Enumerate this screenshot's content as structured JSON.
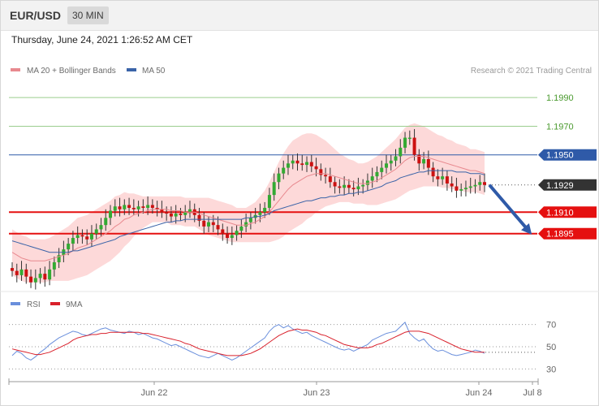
{
  "header": {
    "symbol": "EUR/USD",
    "period": "30 MIN"
  },
  "datetime": "Thursday, June 24, 2021 1:26:52 AM CET",
  "copyright": "Research © 2021 Trading Central",
  "legend": {
    "ma20": "MA 20 + Bollinger Bands",
    "ma50": "MA 50",
    "rsi": "RSI",
    "rsi_ma": "9MA"
  },
  "colors": {
    "candle_up": "#33aa33",
    "candle_down": "#cc1111",
    "bollinger_fill": "#fdd9d9",
    "ma20": "#e8898f",
    "ma50": "#3a63a8",
    "support": "#e51010",
    "pivot": "#2f5aa8",
    "resistance": "#9acd8e",
    "rsi": "#6a8fdc",
    "rsi_ma": "#d9202b",
    "arrow": "#2f5aa8"
  },
  "chart_data": [
    {
      "type": "candlestick",
      "title": "EUR/USD",
      "ylim": [
        1.1858,
        1.2002
      ],
      "price_levels": [
        {
          "label": "1.1990",
          "value": 1.199,
          "kind": "resistance"
        },
        {
          "label": "1.1970",
          "value": 1.197,
          "kind": "resistance"
        },
        {
          "label": "1.1950",
          "value": 1.195,
          "kind": "pivot"
        },
        {
          "label": "1.1929",
          "value": 1.1929,
          "kind": "last"
        },
        {
          "label": "1.1910",
          "value": 1.191,
          "kind": "support"
        },
        {
          "label": "1.1895",
          "value": 1.1895,
          "kind": "support"
        }
      ],
      "closes": [
        1.1869,
        1.1866,
        1.187,
        1.1865,
        1.1861,
        1.1864,
        1.1867,
        1.1863,
        1.187,
        1.1875,
        1.188,
        1.1884,
        1.1888,
        1.1892,
        1.1894,
        1.1893,
        1.1891,
        1.1895,
        1.1898,
        1.1901,
        1.1906,
        1.1911,
        1.1914,
        1.1912,
        1.1915,
        1.1913,
        1.1912,
        1.1914,
        1.1913,
        1.1915,
        1.1913,
        1.1912,
        1.191,
        1.1909,
        1.1907,
        1.1909,
        1.1908,
        1.191,
        1.1912,
        1.1908,
        1.1904,
        1.19,
        1.1903,
        1.1901,
        1.1898,
        1.1895,
        1.1892,
        1.1894,
        1.1897,
        1.19,
        1.1903,
        1.1906,
        1.1908,
        1.191,
        1.1913,
        1.1922,
        1.1931,
        1.1937,
        1.1941,
        1.1944,
        1.1946,
        1.1944,
        1.1943,
        1.1945,
        1.1942,
        1.194,
        1.1936,
        1.1935,
        1.1931,
        1.1928,
        1.1927,
        1.1929,
        1.1927,
        1.1926,
        1.1928,
        1.1929,
        1.1932,
        1.1935,
        1.1938,
        1.1941,
        1.1944,
        1.1946,
        1.1949,
        1.1955,
        1.1962,
        1.1962,
        1.195,
        1.1944,
        1.1947,
        1.1941,
        1.1935,
        1.1933,
        1.1935,
        1.193,
        1.1928,
        1.1925,
        1.1926,
        1.1927,
        1.1928,
        1.1929,
        1.1931,
        1.1929
      ],
      "ma20": [
        1.1882,
        1.188,
        1.1878,
        1.1877,
        1.1876,
        1.1876,
        1.1876,
        1.1876,
        1.1877,
        1.1878,
        1.1879,
        1.188,
        1.1881,
        1.1883,
        1.1885,
        1.1886,
        1.1887,
        1.1889,
        1.1891,
        1.1893,
        1.1895,
        1.1897,
        1.19,
        1.1902,
        1.1905,
        1.1906,
        1.1908,
        1.1909,
        1.191,
        1.1911,
        1.1912,
        1.1912,
        1.1912,
        1.1912,
        1.1911,
        1.1911,
        1.1911,
        1.191,
        1.191,
        1.191,
        1.1909,
        1.1908,
        1.1907,
        1.1906,
        1.1905,
        1.1904,
        1.1903,
        1.1902,
        1.1901,
        1.1901,
        1.1901,
        1.1902,
        1.1903,
        1.1905,
        1.1907,
        1.191,
        1.1914,
        1.1918,
        1.1922,
        1.1926,
        1.1929,
        1.1931,
        1.1933,
        1.1935,
        1.1936,
        1.1937,
        1.1937,
        1.1937,
        1.1936,
        1.1935,
        1.1934,
        1.1933,
        1.1932,
        1.1931,
        1.193,
        1.193,
        1.193,
        1.1931,
        1.1932,
        1.1934,
        1.1936,
        1.1938,
        1.194,
        1.1943,
        1.1946,
        1.1948,
        1.1949,
        1.1949,
        1.1949,
        1.1948,
        1.1947,
        1.1946,
        1.1945,
        1.1944,
        1.1943,
        1.1942,
        1.1941,
        1.194,
        1.1939,
        1.1939,
        1.1938,
        1.1937
      ],
      "ma50": [
        1.189,
        1.1889,
        1.1888,
        1.1887,
        1.1886,
        1.1885,
        1.1884,
        1.1883,
        1.1882,
        1.1882,
        1.1882,
        1.1882,
        1.1882,
        1.1883,
        1.1883,
        1.1884,
        1.1885,
        1.1886,
        1.1887,
        1.1888,
        1.1889,
        1.189,
        1.1891,
        1.1893,
        1.1894,
        1.1895,
        1.1896,
        1.1897,
        1.1898,
        1.1899,
        1.19,
        1.1901,
        1.1902,
        1.1903,
        1.1903,
        1.1904,
        1.1904,
        1.1905,
        1.1905,
        1.1905,
        1.1905,
        1.1905,
        1.1905,
        1.1905,
        1.1905,
        1.1905,
        1.1905,
        1.1905,
        1.1905,
        1.1905,
        1.1906,
        1.1906,
        1.1907,
        1.1907,
        1.1908,
        1.1909,
        1.1911,
        1.1912,
        1.1913,
        1.1914,
        1.1915,
        1.1916,
        1.1917,
        1.1918,
        1.1918,
        1.1919,
        1.192,
        1.192,
        1.1921,
        1.1921,
        1.1922,
        1.1922,
        1.1923,
        1.1923,
        1.1924,
        1.1924,
        1.1925,
        1.1926,
        1.1927,
        1.1928,
        1.193,
        1.1931,
        1.1932,
        1.1934,
        1.1935,
        1.1936,
        1.1937,
        1.1938,
        1.1938,
        1.1939,
        1.1939,
        1.1939,
        1.1939,
        1.1939,
        1.1939,
        1.1938,
        1.1938,
        1.1938,
        1.1937,
        1.1937,
        1.1937,
        1.1936
      ],
      "bb_width": [
        0.0016,
        0.0016,
        0.0016,
        0.0016,
        0.0015,
        0.0015,
        0.0015,
        0.0015,
        0.0015,
        0.0016,
        0.0017,
        0.0018,
        0.0019,
        0.002,
        0.0021,
        0.0021,
        0.0021,
        0.0021,
        0.0021,
        0.0021,
        0.0021,
        0.0021,
        0.0021,
        0.002,
        0.0019,
        0.0017,
        0.0015,
        0.0013,
        0.0011,
        0.001,
        0.0009,
        0.0009,
        0.0009,
        0.0009,
        0.001,
        0.001,
        0.001,
        0.001,
        0.001,
        0.001,
        0.0011,
        0.0012,
        0.0013,
        0.0013,
        0.0013,
        0.0013,
        0.0013,
        0.0013,
        0.0012,
        0.0012,
        0.0012,
        0.0013,
        0.0014,
        0.0016,
        0.0018,
        0.0021,
        0.0024,
        0.0027,
        0.0029,
        0.003,
        0.0031,
        0.0031,
        0.0031,
        0.003,
        0.0029,
        0.0027,
        0.0025,
        0.0023,
        0.0021,
        0.0019,
        0.0017,
        0.0016,
        0.0015,
        0.0015,
        0.0014,
        0.0014,
        0.0015,
        0.0016,
        0.0017,
        0.0018,
        0.0019,
        0.002,
        0.0021,
        0.0022,
        0.0023,
        0.0023,
        0.0023,
        0.0022,
        0.0021,
        0.002,
        0.0019,
        0.0018,
        0.0018,
        0.0017,
        0.0017,
        0.0016,
        0.0016,
        0.0016,
        0.0015,
        0.0015,
        0.0015,
        0.0015
      ],
      "projection": {
        "from": 1.1929,
        "to": 1.1895
      }
    },
    {
      "type": "line",
      "ylim": [
        20,
        80
      ],
      "yticks": [
        70,
        50,
        30
      ],
      "xticks": [
        "Jun 22",
        "Jun 23",
        "Jun 24",
        "Jul 8"
      ],
      "series": [
        {
          "name": "RSI",
          "values": [
            42,
            46,
            44,
            40,
            38,
            41,
            45,
            48,
            52,
            55,
            58,
            60,
            62,
            64,
            63,
            61,
            60,
            62,
            64,
            66,
            67,
            65,
            64,
            63,
            62,
            64,
            63,
            61,
            62,
            60,
            58,
            57,
            55,
            53,
            51,
            52,
            50,
            48,
            46,
            44,
            42,
            41,
            40,
            42,
            44,
            42,
            40,
            38,
            40,
            43,
            46,
            49,
            52,
            55,
            58,
            64,
            68,
            70,
            67,
            69,
            66,
            64,
            62,
            63,
            60,
            58,
            56,
            54,
            52,
            50,
            48,
            47,
            48,
            46,
            48,
            50,
            52,
            56,
            58,
            60,
            62,
            63,
            64,
            68,
            72,
            62,
            58,
            55,
            57,
            52,
            48,
            46,
            47,
            45,
            43,
            42,
            43,
            44,
            45,
            47,
            46,
            44
          ]
        },
        {
          "name": "9MA",
          "values": [
            48,
            47,
            46,
            45,
            44,
            43,
            43,
            44,
            45,
            47,
            49,
            51,
            53,
            56,
            58,
            59,
            60,
            61,
            61,
            62,
            62,
            63,
            63,
            63,
            63,
            63,
            63,
            63,
            62,
            62,
            61,
            60,
            59,
            58,
            57,
            56,
            55,
            53,
            52,
            50,
            48,
            47,
            46,
            45,
            44,
            43,
            42,
            42,
            42,
            42,
            43,
            44,
            46,
            48,
            51,
            54,
            57,
            60,
            62,
            64,
            65,
            66,
            65,
            65,
            64,
            63,
            61,
            60,
            58,
            56,
            54,
            52,
            51,
            50,
            49,
            49,
            49,
            50,
            52,
            53,
            55,
            57,
            59,
            61,
            63,
            64,
            64,
            64,
            63,
            62,
            60,
            58,
            56,
            54,
            52,
            50,
            48,
            47,
            46,
            45,
            45,
            45
          ]
        }
      ]
    }
  ]
}
